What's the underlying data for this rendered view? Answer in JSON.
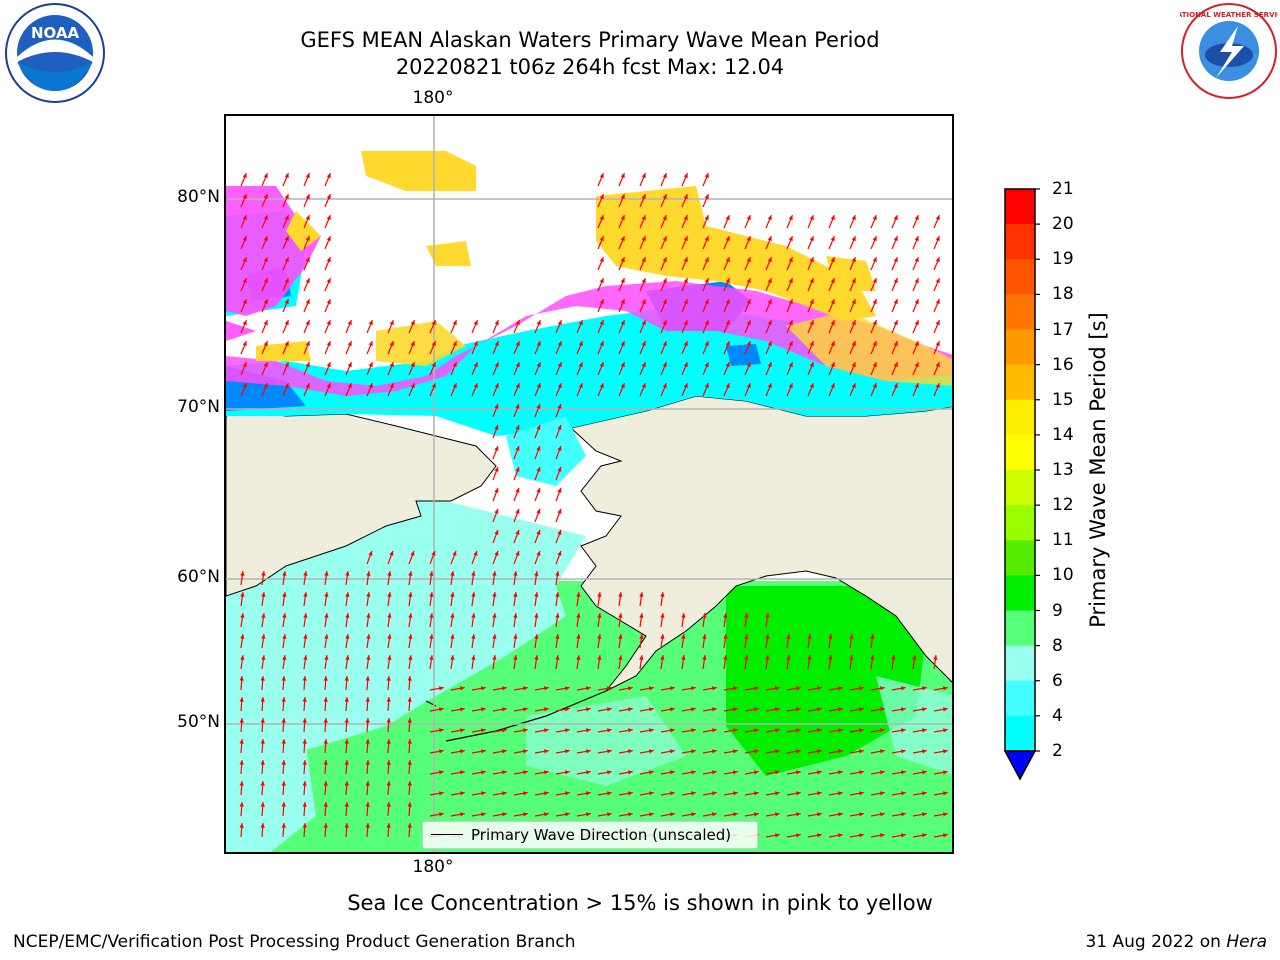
{
  "title": {
    "line1": "GEFS MEAN Alaskan Waters Primary Wave Mean Period",
    "line2": "20220821 t06z 264h fcst   Max: 12.04"
  },
  "map": {
    "lon_labels": [
      "180°",
      "180°"
    ],
    "lat_labels": [
      "80°N",
      "70°N",
      "60°N",
      "50°N"
    ],
    "legend_label": "Primary Wave Direction (unscaled)",
    "colors": {
      "land": "#efeedd",
      "ice_pink": "#ff4dff",
      "ice_yellow": "#ffd92e",
      "arrow": "#ff0000",
      "grid": "#b4b4b4"
    }
  },
  "colorbar": {
    "label": "Primary Wave Mean Period [s]",
    "ticks": [
      "21",
      "20",
      "19",
      "18",
      "17",
      "16",
      "15",
      "14",
      "13",
      "12",
      "11",
      "10",
      "9",
      "8",
      "6",
      "4",
      "2"
    ],
    "colors": [
      "#ff0000",
      "#ff3300",
      "#ff5500",
      "#ff7700",
      "#ff9900",
      "#ffbb00",
      "#ffee00",
      "#ffff00",
      "#ccff00",
      "#99ff00",
      "#55ee00",
      "#00ee00",
      "#55ff77",
      "#99ffee",
      "#44ffff",
      "#00ffff",
      "#0088ff"
    ],
    "under_color": "#0000ff"
  },
  "note": "Sea Ice Concentration > 15% is shown in pink to yellow",
  "footer": {
    "left": "NCEP/EMC/Verification Post Processing Product Generation Branch",
    "right_date": "31 Aug 2022 on",
    "right_host": "Hera"
  },
  "logos": {
    "noaa_text": "NOAA",
    "nws_text": "NATIONAL WEATHER SERVICE"
  }
}
